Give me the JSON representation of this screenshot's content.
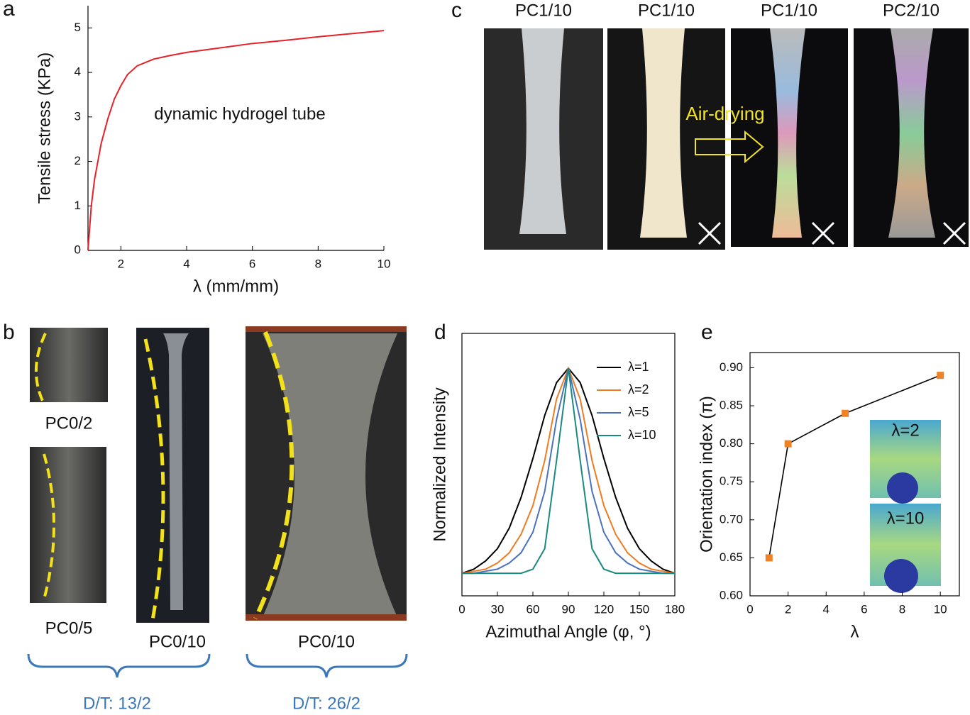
{
  "chart_data": [
    {
      "type": "line",
      "panel_label": "a",
      "xlabel": "λ (mm/mm)",
      "ylabel": "Tensile stress (KPa)",
      "annotation": "dynamic hydrogel tube",
      "xlim": [
        1,
        10
      ],
      "ylim": [
        0,
        5.5
      ],
      "xticks": [
        2,
        4,
        6,
        8,
        10
      ],
      "yticks": [
        0,
        1,
        2,
        3,
        4,
        5
      ],
      "x": [
        1,
        1.05,
        1.1,
        1.2,
        1.4,
        1.6,
        1.8,
        2,
        2.2,
        2.5,
        3,
        3.5,
        4,
        5,
        6,
        7,
        8,
        9,
        10
      ],
      "series": [
        {
          "color": "#e8202a",
          "values": [
            0,
            0.5,
            1.0,
            1.6,
            2.4,
            2.95,
            3.4,
            3.7,
            3.95,
            4.15,
            4.3,
            4.38,
            4.45,
            4.55,
            4.65,
            4.72,
            4.8,
            4.87,
            4.94
          ]
        }
      ]
    },
    {
      "type": "line",
      "panel_label": "d",
      "xlabel": "Azimuthal Angle (φ, °)",
      "ylabel": "Normalized Intensity",
      "xlim": [
        0,
        180
      ],
      "ylim": [
        -0.11,
        1.17
      ],
      "xticks": [
        0,
        30,
        60,
        90,
        120,
        150,
        180
      ],
      "yticks": [],
      "legend": "upper right",
      "x": [
        0,
        10,
        20,
        30,
        40,
        50,
        60,
        70,
        80,
        90,
        100,
        110,
        120,
        130,
        140,
        150,
        160,
        170,
        180
      ],
      "series": [
        {
          "name": "λ=1",
          "color": "#000000",
          "values": [
            0,
            0.02,
            0.06,
            0.12,
            0.22,
            0.37,
            0.56,
            0.77,
            0.93,
            1,
            0.93,
            0.77,
            0.56,
            0.37,
            0.22,
            0.12,
            0.06,
            0.02,
            0
          ]
        },
        {
          "name": "λ=2",
          "color": "#ee7d22",
          "values": [
            0,
            0.01,
            0.02,
            0.05,
            0.1,
            0.19,
            0.33,
            0.55,
            0.85,
            1,
            0.85,
            0.55,
            0.33,
            0.19,
            0.1,
            0.05,
            0.02,
            0.01,
            0
          ]
        },
        {
          "name": "λ=5",
          "color": "#4a72c0",
          "values": [
            0,
            0,
            0.01,
            0.02,
            0.05,
            0.1,
            0.2,
            0.4,
            0.75,
            1,
            0.75,
            0.4,
            0.2,
            0.1,
            0.05,
            0.02,
            0.01,
            0,
            0
          ]
        },
        {
          "name": "λ=10",
          "color": "#1a8a80",
          "values": [
            0,
            0,
            0,
            0,
            0,
            0,
            0.02,
            0.12,
            0.55,
            1,
            0.55,
            0.12,
            0.02,
            0,
            0,
            0,
            0,
            0,
            0
          ]
        }
      ]
    },
    {
      "type": "line",
      "panel_label": "e",
      "xlabel": "λ",
      "ylabel": "Orientation index (π)",
      "marker": "square",
      "annotations": [
        "λ=2",
        "λ=10"
      ],
      "xlim": [
        0,
        11
      ],
      "ylim": [
        0.6,
        0.92
      ],
      "xticks": [
        0,
        2,
        4,
        6,
        8,
        10
      ],
      "yticks": [
        {
          "value": 0.6,
          "label": "0.60"
        },
        0.65,
        {
          "value": 0.7,
          "label": "0.70"
        },
        0.75,
        {
          "value": 0.8,
          "label": "0.80"
        },
        0.85,
        {
          "value": 0.9,
          "label": "0.90"
        }
      ],
      "x": [
        1,
        2,
        5,
        10
      ],
      "series": [
        {
          "color": "#f08226",
          "values": [
            0.65,
            0.8,
            0.84,
            0.89
          ]
        }
      ]
    }
  ],
  "photos": {
    "b": {
      "panel_label": "b",
      "labels": [
        "PC0/2",
        "PC0/5",
        "PC0/10",
        "PC0/10"
      ],
      "groups": [
        "D/T: 13/2",
        "D/T: 26/2"
      ]
    },
    "c": {
      "panel_label": "c",
      "labels": [
        "PC1/10",
        "PC1/10",
        "PC1/10",
        "PC2/10"
      ],
      "arrow": "Air-drying"
    }
  }
}
